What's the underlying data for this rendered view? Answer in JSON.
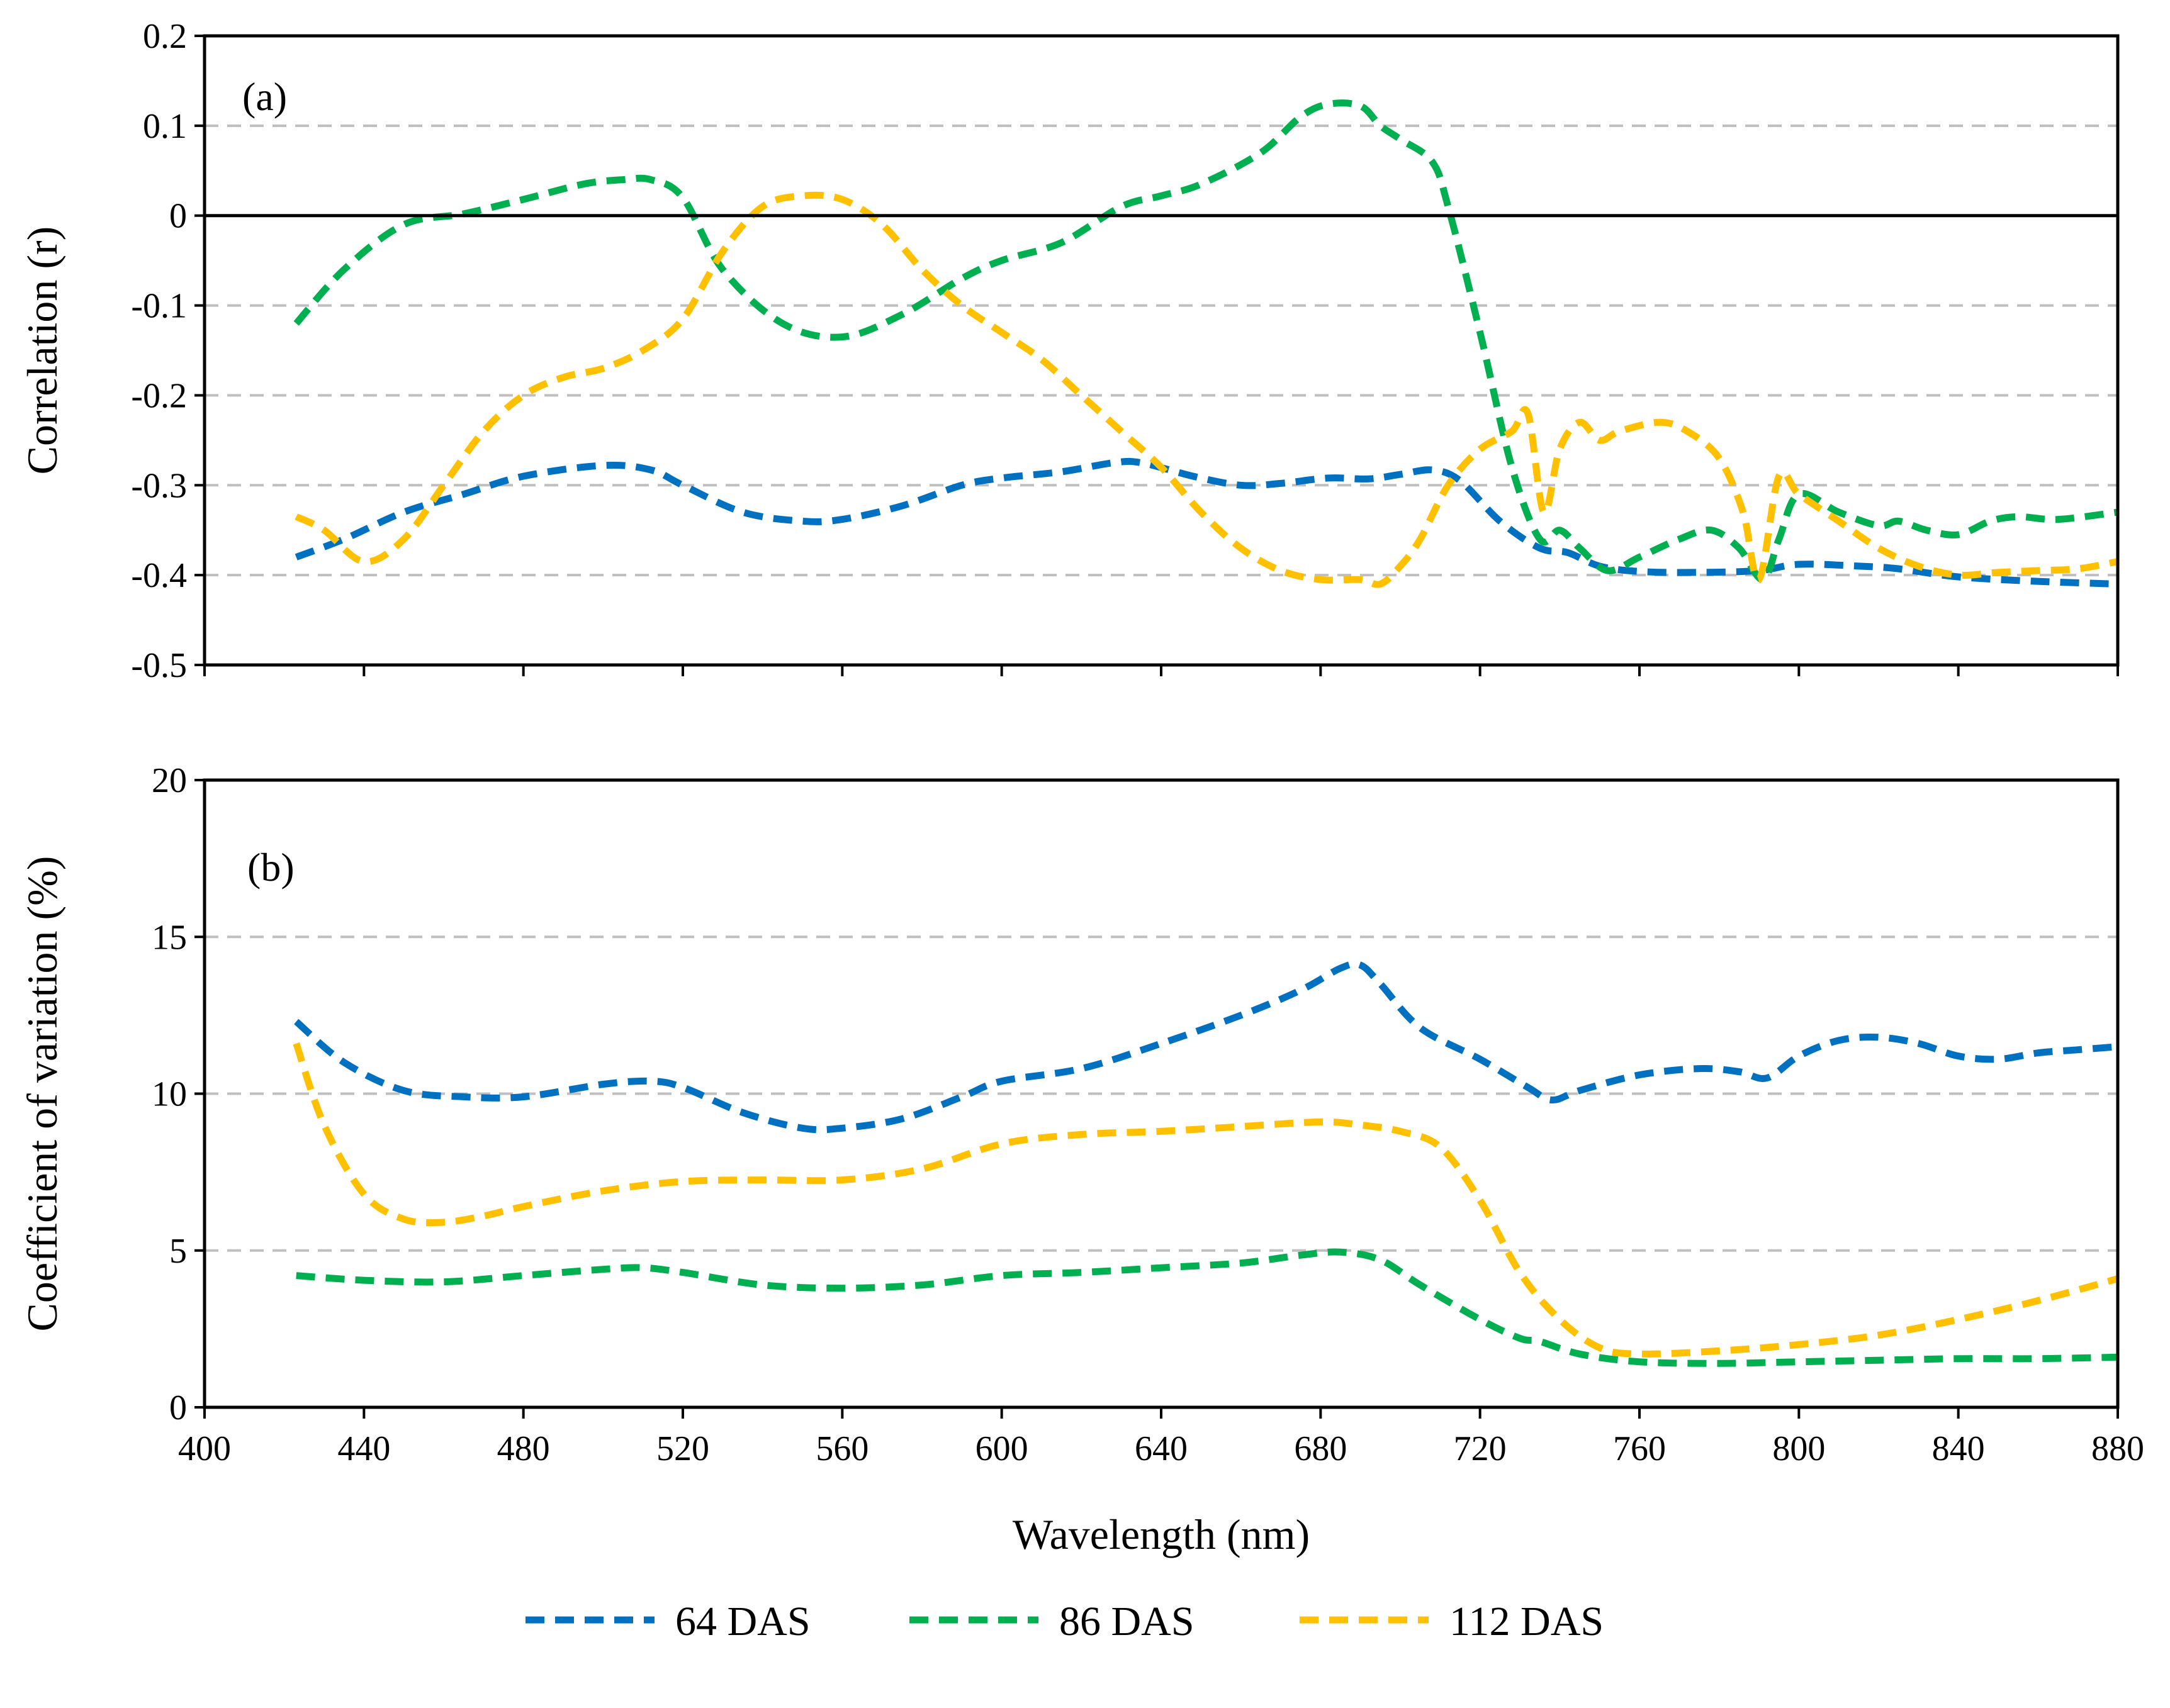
{
  "chart_data": [
    {
      "type": "line",
      "panel_label": "(a)",
      "xlabel": "",
      "ylabel": "Correlation (r)",
      "xlim": [
        400,
        880
      ],
      "ylim": [
        -0.5,
        0.2
      ],
      "x_ticks": [
        400,
        440,
        480,
        520,
        560,
        600,
        640,
        680,
        720,
        760,
        800,
        840,
        880
      ],
      "y_ticks": [
        -0.5,
        -0.4,
        -0.3,
        -0.2,
        -0.1,
        0,
        0.1,
        0.2
      ],
      "y_tick_labels": [
        "-0.5",
        "-0.4",
        "-0.3",
        "-0.2",
        "-0.1",
        "0",
        "0.1",
        "0.2"
      ],
      "x_tick_labels_shown": false,
      "grid": "horizontal dashed",
      "reference_line": 0,
      "series": [
        {
          "name": "64 DAS",
          "color": "#0070C0",
          "x": [
            423,
            435,
            450,
            465,
            480,
            500,
            512,
            520,
            535,
            550,
            560,
            575,
            590,
            600,
            615,
            628,
            635,
            648,
            660,
            670,
            682,
            692,
            700,
            708,
            715,
            725,
            735,
            742,
            750,
            760,
            775,
            790,
            800,
            815,
            825,
            840,
            860,
            880
          ],
          "values": [
            -0.38,
            -0.36,
            -0.33,
            -0.31,
            -0.29,
            -0.278,
            -0.283,
            -0.3,
            -0.33,
            -0.34,
            -0.338,
            -0.323,
            -0.3,
            -0.292,
            -0.285,
            -0.275,
            -0.275,
            -0.29,
            -0.3,
            -0.298,
            -0.292,
            -0.293,
            -0.288,
            -0.283,
            -0.295,
            -0.34,
            -0.37,
            -0.375,
            -0.39,
            -0.396,
            -0.397,
            -0.395,
            -0.388,
            -0.39,
            -0.393,
            -0.402,
            -0.407,
            -0.41
          ]
        },
        {
          "name": "86 DAS",
          "color": "#00B050",
          "x": [
            423,
            435,
            450,
            465,
            480,
            495,
            505,
            512,
            520,
            530,
            545,
            560,
            575,
            590,
            600,
            615,
            630,
            640,
            650,
            665,
            675,
            682,
            690,
            695,
            700,
            708,
            712,
            720,
            728,
            735,
            740,
            745,
            752,
            760,
            770,
            778,
            785,
            791,
            795,
            800,
            810,
            820,
            825,
            832,
            840,
            848,
            855,
            865,
            880
          ],
          "values": [
            -0.12,
            -0.06,
            -0.01,
            0.002,
            0.018,
            0.035,
            0.04,
            0.04,
            0.02,
            -0.06,
            -0.12,
            -0.135,
            -0.11,
            -0.07,
            -0.05,
            -0.03,
            0.01,
            0.022,
            0.035,
            0.07,
            0.11,
            0.124,
            0.122,
            0.1,
            0.085,
            0.06,
            0.01,
            -0.13,
            -0.28,
            -0.36,
            -0.35,
            -0.37,
            -0.395,
            -0.38,
            -0.36,
            -0.35,
            -0.37,
            -0.405,
            -0.36,
            -0.31,
            -0.33,
            -0.345,
            -0.34,
            -0.35,
            -0.355,
            -0.34,
            -0.335,
            -0.338,
            -0.33
          ]
        },
        {
          "name": "112 DAS",
          "color": "#FFC000",
          "x": [
            423,
            430,
            440,
            450,
            460,
            470,
            480,
            490,
            500,
            510,
            520,
            530,
            540,
            550,
            560,
            570,
            580,
            590,
            600,
            610,
            620,
            630,
            640,
            650,
            660,
            670,
            680,
            690,
            695,
            700,
            705,
            712,
            720,
            728,
            732,
            736,
            740,
            745,
            750,
            755,
            765,
            772,
            780,
            786,
            790,
            795,
            800,
            810,
            820,
            830,
            840,
            850,
            860,
            870,
            880
          ],
          "values": [
            -0.335,
            -0.35,
            -0.385,
            -0.36,
            -0.3,
            -0.24,
            -0.2,
            -0.18,
            -0.17,
            -0.15,
            -0.115,
            -0.04,
            0.01,
            0.022,
            0.018,
            -0.01,
            -0.06,
            -0.1,
            -0.13,
            -0.16,
            -0.2,
            -0.24,
            -0.28,
            -0.33,
            -0.37,
            -0.395,
            -0.405,
            -0.405,
            -0.41,
            -0.39,
            -0.36,
            -0.3,
            -0.26,
            -0.24,
            -0.22,
            -0.33,
            -0.26,
            -0.23,
            -0.25,
            -0.24,
            -0.23,
            -0.24,
            -0.27,
            -0.33,
            -0.405,
            -0.29,
            -0.31,
            -0.34,
            -0.37,
            -0.39,
            -0.4,
            -0.397,
            -0.395,
            -0.393,
            -0.385
          ]
        }
      ]
    },
    {
      "type": "line",
      "panel_label": "(b)",
      "xlabel": "Wavelength (nm)",
      "ylabel": "Coefficient of variation (%)",
      "xlim": [
        400,
        880
      ],
      "ylim": [
        0,
        20
      ],
      "x_ticks": [
        400,
        440,
        480,
        520,
        560,
        600,
        640,
        680,
        720,
        760,
        800,
        840,
        880
      ],
      "x_tick_labels": [
        "400",
        "440",
        "480",
        "520",
        "560",
        "600",
        "640",
        "680",
        "720",
        "760",
        "800",
        "840",
        "880"
      ],
      "y_ticks": [
        0,
        5,
        10,
        15,
        20
      ],
      "y_tick_labels": [
        "0",
        "5",
        "10",
        "15",
        "20"
      ],
      "grid": "horizontal dashed",
      "series": [
        {
          "name": "64 DAS",
          "color": "#0070C0",
          "x": [
            423,
            435,
            450,
            465,
            480,
            500,
            512,
            520,
            535,
            550,
            560,
            575,
            590,
            600,
            620,
            640,
            660,
            675,
            685,
            690,
            695,
            705,
            720,
            732,
            738,
            745,
            760,
            775,
            785,
            792,
            800,
            810,
            820,
            830,
            840,
            850,
            860,
            870,
            880
          ],
          "values": [
            12.3,
            11.0,
            10.1,
            9.9,
            9.9,
            10.3,
            10.4,
            10.2,
            9.4,
            8.9,
            8.9,
            9.2,
            9.9,
            10.4,
            10.8,
            11.6,
            12.5,
            13.3,
            14.0,
            14.1,
            13.5,
            12.1,
            11.1,
            10.2,
            9.8,
            10.1,
            10.6,
            10.8,
            10.7,
            10.5,
            11.2,
            11.7,
            11.8,
            11.6,
            11.2,
            11.1,
            11.3,
            11.4,
            11.5
          ]
        },
        {
          "name": "86 DAS",
          "color": "#00B050",
          "x": [
            423,
            440,
            460,
            480,
            500,
            510,
            520,
            540,
            560,
            580,
            600,
            620,
            640,
            660,
            675,
            685,
            695,
            705,
            720,
            730,
            735,
            745,
            760,
            780,
            800,
            820,
            840,
            860,
            880
          ],
          "values": [
            4.2,
            4.05,
            4.0,
            4.2,
            4.4,
            4.45,
            4.3,
            3.9,
            3.8,
            3.9,
            4.2,
            4.3,
            4.45,
            4.6,
            4.85,
            4.95,
            4.7,
            3.9,
            2.8,
            2.2,
            2.1,
            1.7,
            1.45,
            1.4,
            1.45,
            1.5,
            1.55,
            1.55,
            1.6
          ]
        },
        {
          "name": "112 DAS",
          "color": "#FFC000",
          "x": [
            423,
            430,
            440,
            450,
            460,
            470,
            480,
            500,
            520,
            540,
            560,
            580,
            600,
            620,
            640,
            660,
            680,
            690,
            700,
            710,
            720,
            730,
            740,
            750,
            760,
            780,
            800,
            820,
            840,
            860,
            880
          ],
          "values": [
            11.6,
            9.0,
            6.8,
            6.0,
            5.9,
            6.1,
            6.4,
            6.9,
            7.2,
            7.25,
            7.25,
            7.6,
            8.4,
            8.7,
            8.8,
            8.95,
            9.1,
            9.0,
            8.8,
            8.3,
            6.6,
            4.3,
            2.8,
            1.9,
            1.7,
            1.8,
            2.0,
            2.3,
            2.8,
            3.4,
            4.1
          ]
        }
      ]
    }
  ],
  "legend": {
    "placement": "bottom-center",
    "items": [
      "64 DAS",
      "86 DAS",
      "112 DAS"
    ]
  }
}
